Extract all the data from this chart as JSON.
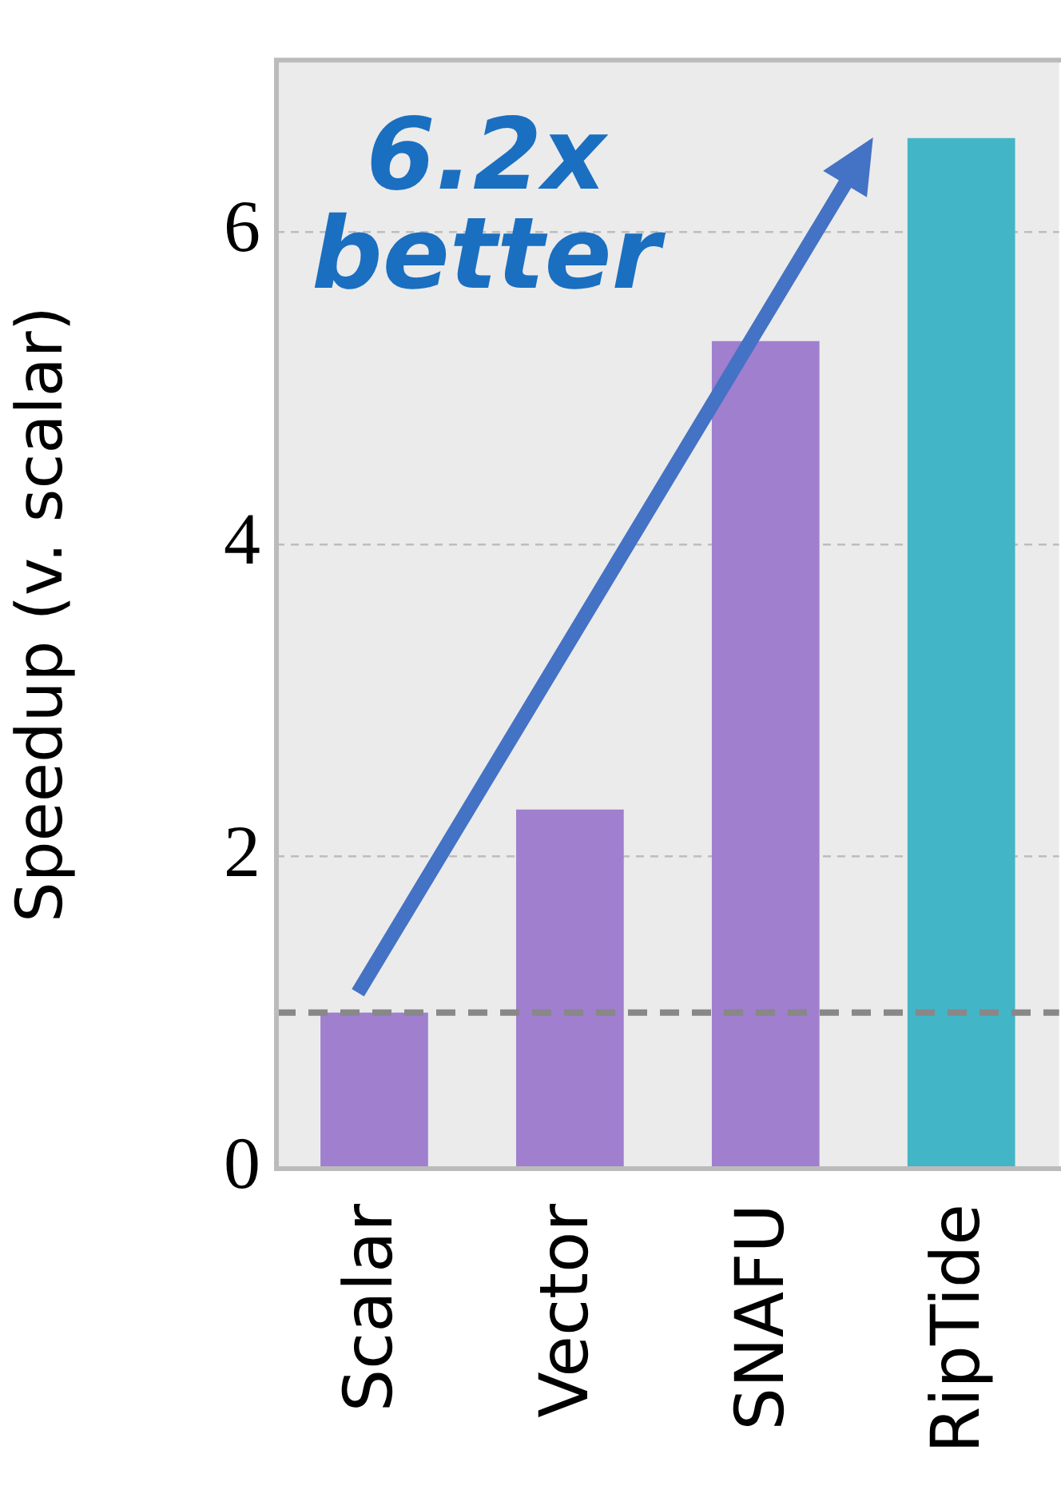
{
  "chart_data": {
    "type": "bar",
    "ylabel": "Speedup (v. scalar)",
    "categories": [
      "Scalar",
      "Vector",
      "SNAFU",
      "RipTide"
    ],
    "values": [
      1.0,
      2.3,
      5.3,
      6.6
    ],
    "colors": [
      "#9f7fce",
      "#9f7fce",
      "#9f7fce",
      "#42b5c6"
    ],
    "ylim": [
      0,
      7.1
    ],
    "yticks": [
      0,
      2,
      4,
      6
    ],
    "grid": "y",
    "ref_lines": [
      {
        "axis": "y",
        "value": 1,
        "color": "#888888",
        "line_style": "dashed"
      }
    ],
    "annotations": [
      "6.2x better"
    ],
    "legend": false
  }
}
